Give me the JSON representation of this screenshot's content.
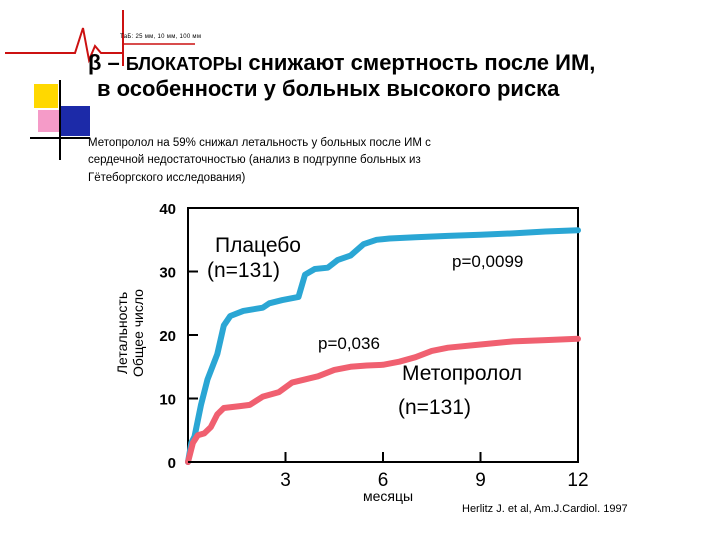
{
  "logo": {
    "caption": "ТаБ: 25 мм, 10 мм, 100 мм",
    "icon": "ecg-heartbeat-logo",
    "color": "#cc1111"
  },
  "title": {
    "symbol": "β",
    "dash": " – ",
    "keyword": "БЛОКАТОРЫ",
    "rest_line1": " снижают смертность после ИМ,",
    "line2": "в особенности  у больных высокого риска"
  },
  "subtitle": {
    "line1": "Метопролол на 59% снижал летальность у больных после ИМ с",
    "line2": "сердечной недостаточностью (анализ в подгруппе больных из",
    "line3": "Гётеборгского исследования)"
  },
  "chart_data": {
    "type": "line",
    "ylabel_line1": "Летальность",
    "ylabel_line2": "Общее число",
    "xlabel": "месяцы",
    "xlim": [
      0,
      12
    ],
    "ylim": [
      0,
      40
    ],
    "x_ticks": [
      "3",
      "6",
      "9",
      "12"
    ],
    "x_tick_values": [
      3,
      6,
      9,
      12
    ],
    "y_ticks": [
      "0",
      "10",
      "20",
      "30",
      "40"
    ],
    "y_tick_values": [
      0,
      10,
      20,
      30,
      40
    ],
    "grid": false,
    "series": [
      {
        "name": "Плацебо",
        "n_label": "(n=131)",
        "color": "#2aa6d4",
        "points": [
          [
            0,
            0
          ],
          [
            0.1,
            3
          ],
          [
            0.2,
            4
          ],
          [
            0.4,
            9
          ],
          [
            0.6,
            13
          ],
          [
            0.9,
            17
          ],
          [
            1.1,
            21.5
          ],
          [
            1.3,
            23
          ],
          [
            1.7,
            23.8
          ],
          [
            2.3,
            24.3
          ],
          [
            2.5,
            25
          ],
          [
            2.9,
            25.5
          ],
          [
            3.4,
            26
          ],
          [
            3.6,
            29.5
          ],
          [
            3.9,
            30.4
          ],
          [
            4.3,
            30.6
          ],
          [
            4.6,
            31.8
          ],
          [
            5.0,
            32.5
          ],
          [
            5.4,
            34.3
          ],
          [
            5.8,
            35
          ],
          [
            6.2,
            35.2
          ],
          [
            7.0,
            35.4
          ],
          [
            8.0,
            35.6
          ],
          [
            9.0,
            35.8
          ],
          [
            10.0,
            36
          ],
          [
            11.0,
            36.3
          ],
          [
            12.0,
            36.5
          ]
        ]
      },
      {
        "name": "Метопролол",
        "n_label": "(n=131)",
        "color": "#f06070",
        "points": [
          [
            0,
            0
          ],
          [
            0.15,
            3
          ],
          [
            0.3,
            4.2
          ],
          [
            0.5,
            4.5
          ],
          [
            0.7,
            5.5
          ],
          [
            0.9,
            7.5
          ],
          [
            1.1,
            8.5
          ],
          [
            1.6,
            8.8
          ],
          [
            1.9,
            9
          ],
          [
            2.3,
            10.3
          ],
          [
            2.8,
            11
          ],
          [
            3.2,
            12.5
          ],
          [
            3.6,
            13
          ],
          [
            4.0,
            13.5
          ],
          [
            4.5,
            14.5
          ],
          [
            5.0,
            15
          ],
          [
            5.5,
            15.2
          ],
          [
            6.0,
            15.3
          ],
          [
            6.5,
            15.8
          ],
          [
            7.0,
            16.5
          ],
          [
            7.5,
            17.5
          ],
          [
            8.0,
            18
          ],
          [
            9.0,
            18.5
          ],
          [
            10.0,
            19
          ],
          [
            11.0,
            19.2
          ],
          [
            12.0,
            19.4
          ]
        ]
      }
    ],
    "annotations": {
      "p_placebo": "p=0,0099",
      "p_metoprolol": "p=0,036"
    }
  },
  "credit": "Herlitz J. et al, Am.J.Cardiol. 1997"
}
